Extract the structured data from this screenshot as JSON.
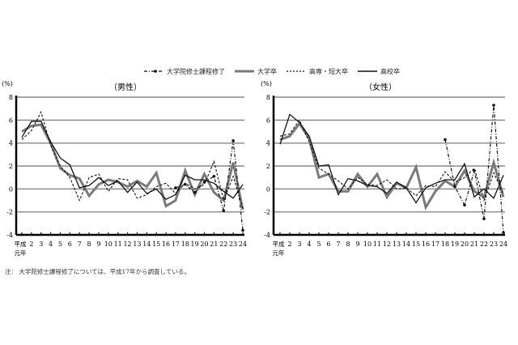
{
  "legend": {
    "items": [
      {
        "label": "大学院修士課程修了",
        "style": "dashdot-marker"
      },
      {
        "label": "大学卒",
        "style": "thick-gray"
      },
      {
        "label": "高専・短大卒",
        "style": "dashed"
      },
      {
        "label": "高校卒",
        "style": "thin-black"
      }
    ]
  },
  "footnote": "注： 大学院修士課程修了については、平成17年から調査している。",
  "colors": {
    "graduate": "#111111",
    "university": "#7a7a7a",
    "junior_college": "#111111",
    "high_school": "#111111",
    "grid": "#888888",
    "axis": "#000000"
  },
  "chart_data": [
    {
      "type": "line",
      "title": "（男性）",
      "ylabel": "(%)",
      "xlabel": "",
      "ylim": [
        -4,
        8
      ],
      "yticks": [
        -4,
        -2,
        0,
        2,
        4,
        6,
        8
      ],
      "grid": true,
      "legend_position": "top",
      "categories": [
        "平成元年",
        "2",
        "3",
        "4",
        "5",
        "6",
        "7",
        "8",
        "9",
        "10",
        "11",
        "12",
        "13",
        "14",
        "15",
        "16",
        "17",
        "18",
        "19",
        "20",
        "21",
        "22",
        "23",
        "24"
      ],
      "series": [
        {
          "name": "大学院修士課程修了",
          "values": [
            null,
            null,
            null,
            null,
            null,
            null,
            null,
            null,
            null,
            null,
            null,
            null,
            null,
            null,
            null,
            null,
            0.1,
            0.4,
            -0.3,
            0.6,
            1.1,
            -1.9,
            4.2,
            -3.6
          ]
        },
        {
          "name": "大学卒",
          "values": [
            5.0,
            5.5,
            5.6,
            4.0,
            1.8,
            1.2,
            0.9,
            -0.6,
            0.4,
            0.8,
            0.6,
            0.2,
            0.7,
            0.2,
            1.4,
            -1.5,
            -1.0,
            1.6,
            -0.5,
            1.3,
            -0.3,
            -1.0,
            2.3,
            -1.8
          ]
        },
        {
          "name": "高専・短大卒",
          "values": [
            4.3,
            5.1,
            6.7,
            3.8,
            2.0,
            1.0,
            -1.0,
            1.0,
            1.3,
            -0.2,
            0.9,
            0.8,
            -0.8,
            -0.5,
            0.2,
            0.5,
            -0.4,
            0.5,
            0.0,
            0.4,
            2.4,
            -1.0,
            1.1,
            -1.7
          ]
        },
        {
          "name": "高校卒",
          "values": [
            4.5,
            5.9,
            5.9,
            4.1,
            2.7,
            2.1,
            0.1,
            0.3,
            1.0,
            0.3,
            0.7,
            -0.3,
            0.6,
            -0.4,
            0.0,
            -0.9,
            -0.5,
            1.2,
            0.8,
            0.8,
            0.5,
            -0.2,
            -0.8,
            0.4
          ]
        }
      ]
    },
    {
      "type": "line",
      "title": "（女性）",
      "ylabel": "(%)",
      "xlabel": "",
      "ylim": [
        -4,
        8
      ],
      "yticks": [
        -4,
        -2,
        0,
        2,
        4,
        6,
        8
      ],
      "grid": true,
      "legend_position": "top",
      "categories": [
        "平成元年",
        "2",
        "3",
        "4",
        "5",
        "6",
        "7",
        "8",
        "9",
        "10",
        "11",
        "12",
        "13",
        "14",
        "15",
        "16",
        "17",
        "18",
        "19",
        "20",
        "21",
        "22",
        "23",
        "24"
      ],
      "series": [
        {
          "name": "大学院修士課程修了",
          "values": [
            null,
            null,
            null,
            null,
            null,
            null,
            null,
            null,
            null,
            null,
            null,
            null,
            null,
            null,
            null,
            null,
            null,
            4.3,
            0.2,
            -1.4,
            1.6,
            -2.6,
            7.3,
            -3.8
          ]
        },
        {
          "name": "大学卒",
          "values": [
            4.3,
            4.6,
            5.7,
            4.4,
            1.0,
            1.3,
            -0.2,
            -0.2,
            1.3,
            0.2,
            1.3,
            -0.7,
            0.5,
            0.1,
            1.9,
            -1.6,
            -0.2,
            0.7,
            0.2,
            1.6,
            -0.2,
            -0.7,
            2.3,
            -0.7
          ]
        },
        {
          "name": "高専・短大卒",
          "values": [
            4.6,
            4.8,
            6.0,
            4.1,
            1.8,
            1.3,
            0.7,
            0.0,
            1.0,
            0.4,
            0.3,
            0.8,
            0.0,
            0.1,
            -0.6,
            0.3,
            0.2,
            1.5,
            0.6,
            1.0,
            1.8,
            -1.0,
            1.4,
            -0.4
          ]
        },
        {
          "name": "高校卒",
          "values": [
            3.9,
            6.5,
            5.8,
            4.6,
            2.0,
            2.1,
            -0.5,
            0.9,
            0.7,
            0.3,
            0.2,
            -0.4,
            0.6,
            0.1,
            -1.2,
            0.1,
            0.5,
            0.8,
            0.8,
            2.2,
            -0.7,
            0.0,
            -0.8,
            1.2
          ]
        }
      ]
    }
  ],
  "xaxis": {
    "first_label_line1": "平成",
    "first_label_line2": "元年"
  }
}
